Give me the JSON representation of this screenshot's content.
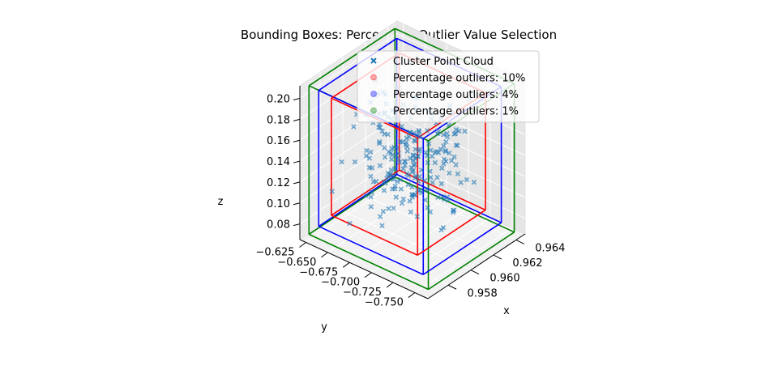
{
  "chart_data": {
    "type": "scatter3d",
    "title": "Bounding Boxes: Percentage Outlier Value Selection",
    "xlabel": "x",
    "ylabel": "y",
    "zlabel": "z",
    "x_ticks": [
      0.958,
      0.96,
      0.962,
      0.964
    ],
    "x_tick_labels": [
      "0.958",
      "0.960",
      "0.962",
      "0.964"
    ],
    "y_ticks": [
      -0.75,
      -0.725,
      -0.7,
      -0.675,
      -0.65,
      -0.625
    ],
    "y_tick_labels": [
      "−0.750",
      "−0.725",
      "−0.700",
      "−0.675",
      "−0.650",
      "−0.625"
    ],
    "z_ticks": [
      0.08,
      0.1,
      0.12,
      0.14,
      0.16,
      0.18,
      0.2
    ],
    "z_tick_labels": [
      "0.08",
      "0.10",
      "0.12",
      "0.14",
      "0.16",
      "0.18",
      "0.20"
    ],
    "xlim": [
      0.9562,
      0.9648
    ],
    "ylim": [
      -0.765,
      -0.618
    ],
    "zlim": [
      0.065,
      0.212
    ],
    "grid": true,
    "legend_position": "top-right",
    "legend": [
      {
        "label": "Cluster Point Cloud",
        "marker": "x",
        "color": "#1f77b4"
      },
      {
        "label": "Percentage outliers: 10%",
        "marker": "o",
        "color": "#ff0000"
      },
      {
        "label": "Percentage outliers: 4%",
        "marker": "o",
        "color": "#0000ff"
      },
      {
        "label": "Percentage outliers: 1%",
        "marker": "o",
        "color": "#008000"
      }
    ],
    "boxes": [
      {
        "name": "Percentage outliers: 1%",
        "color": "#008000",
        "x": [
          0.9567,
          0.9643
        ],
        "y": [
          -0.759,
          -0.622
        ],
        "z": [
          0.068,
          0.21
        ]
      },
      {
        "name": "Percentage outliers: 4%",
        "color": "#0000ff",
        "x": [
          0.9571,
          0.964
        ],
        "y": [
          -0.748,
          -0.628
        ],
        "z": [
          0.075,
          0.205
        ]
      },
      {
        "name": "Percentage outliers: 10%",
        "color": "#ff0000",
        "x": [
          0.9576,
          0.9636
        ],
        "y": [
          -0.735,
          -0.636
        ],
        "z": [
          0.085,
          0.197
        ]
      }
    ],
    "series": [
      {
        "name": "Cluster Point Cloud",
        "color": "#1f77b4",
        "points": []
      }
    ]
  }
}
